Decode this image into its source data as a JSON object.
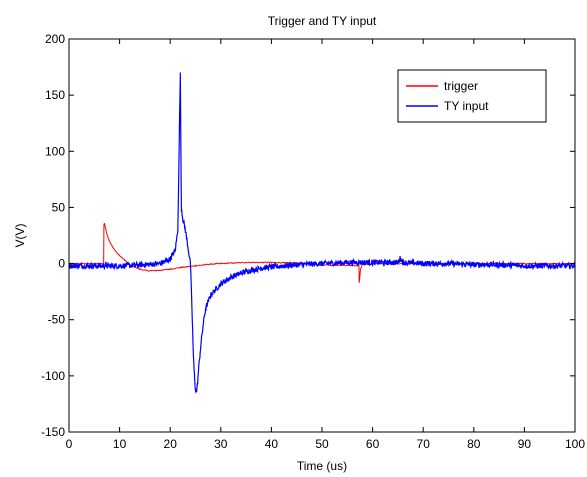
{
  "chart_data": {
    "type": "line",
    "title": "Trigger and TY input",
    "xlabel": "Time (us)",
    "ylabel": "V(V)",
    "xlim": [
      0,
      100
    ],
    "ylim": [
      -150,
      200
    ],
    "xticks": [
      0,
      10,
      20,
      30,
      40,
      50,
      60,
      70,
      80,
      90,
      100
    ],
    "yticks": [
      -150,
      -100,
      -50,
      0,
      50,
      100,
      150,
      200
    ],
    "grid": false,
    "legend_position": "top-right",
    "series": [
      {
        "name": "trigger",
        "color": "#ff0000",
        "x": [
          0,
          6.85,
          6.9,
          7.0,
          7.5,
          8,
          9,
          10,
          11,
          12,
          13,
          14,
          15,
          16,
          18,
          20,
          22,
          25,
          28,
          30,
          35,
          40,
          45,
          48,
          50,
          52,
          55,
          57.3,
          57.35,
          57.45,
          57.6,
          58,
          60,
          65,
          70,
          80,
          90,
          100
        ],
        "y": [
          0,
          0,
          34,
          36,
          26,
          20,
          12,
          7,
          3,
          -1,
          -3,
          -5,
          -6,
          -6.5,
          -6,
          -5,
          -3.5,
          -2,
          -0.5,
          0,
          1,
          1,
          0.5,
          0,
          -1,
          -1.5,
          -1.5,
          -2,
          -17,
          -14,
          -5,
          -1,
          0,
          0,
          0,
          0,
          0,
          0
        ]
      },
      {
        "name": "TY input",
        "color": "#0000ff",
        "x": [
          0,
          5,
          10,
          15,
          18,
          20,
          21,
          21.5,
          21.7,
          21.85,
          22.0,
          22.1,
          22.2,
          22.35,
          22.5,
          23,
          23.5,
          24,
          24.3,
          24.6,
          24.9,
          25.1,
          25.3,
          25.6,
          26,
          26.5,
          27,
          28,
          30,
          32,
          35,
          38,
          40,
          45,
          50,
          55,
          60,
          65,
          65.5,
          66,
          70,
          75,
          80,
          85,
          90,
          95,
          100
        ],
        "y": [
          -2,
          -2,
          -2,
          -1,
          0,
          4,
          12,
          30,
          80,
          130,
          168,
          110,
          50,
          45,
          40,
          30,
          15,
          0,
          -40,
          -85,
          -108,
          -115,
          -112,
          -95,
          -75,
          -55,
          -40,
          -28,
          -18,
          -12,
          -7,
          -4,
          -3,
          -1,
          0,
          1,
          1,
          1,
          5,
          1,
          0,
          0,
          -1,
          -1,
          -2,
          -2,
          -2
        ]
      }
    ]
  }
}
